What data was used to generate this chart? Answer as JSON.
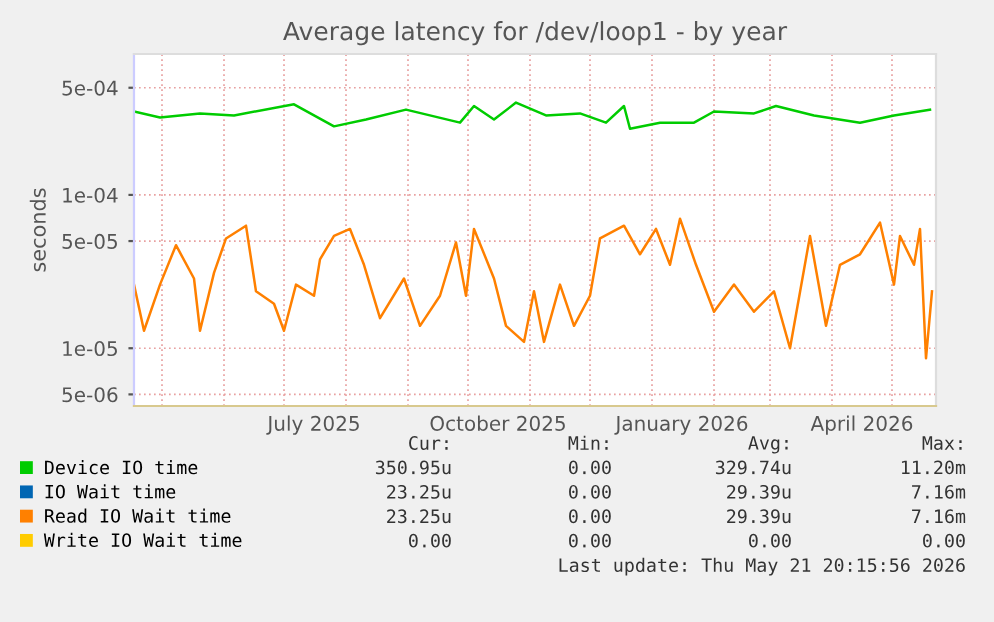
{
  "chart_data": {
    "type": "line",
    "title": "Average latency for /dev/loop1 - by year",
    "ylabel": "seconds",
    "log": "y",
    "ylim": [
      4.2e-06,
      0.00083
    ],
    "yticks": [
      {
        "value": 0.0005,
        "label": "5e-04"
      },
      {
        "value": 0.0001,
        "label": "1e-04"
      },
      {
        "value": 5e-05,
        "label": "5e-05"
      },
      {
        "value": 1e-05,
        "label": "1e-05"
      },
      {
        "value": 5e-06,
        "label": "5e-06"
      }
    ],
    "xlim": [
      "2025-04-17",
      "2026-05-23"
    ],
    "xticks": [
      {
        "value": "2025-05-01",
        "label": null
      },
      {
        "value": "2025-06-01",
        "label": null
      },
      {
        "value": "2025-07-01",
        "label": null
      },
      {
        "value": "2025-07-16",
        "label": "July 2025"
      },
      {
        "value": "2025-08-01",
        "label": null
      },
      {
        "value": "2025-09-01",
        "label": null
      },
      {
        "value": "2025-10-01",
        "label": null
      },
      {
        "value": "2025-10-16",
        "label": "October 2025"
      },
      {
        "value": "2025-11-01",
        "label": null
      },
      {
        "value": "2025-12-01",
        "label": null
      },
      {
        "value": "2026-01-01",
        "label": null
      },
      {
        "value": "2026-01-16",
        "label": "January 2026"
      },
      {
        "value": "2026-02-01",
        "label": null
      },
      {
        "value": "2026-03-01",
        "label": null
      },
      {
        "value": "2026-04-01",
        "label": null
      },
      {
        "value": "2026-04-16",
        "label": "April 2026"
      },
      {
        "value": "2026-05-01",
        "label": null
      }
    ],
    "grid": true,
    "legend": "bottom",
    "series": [
      {
        "name": "Device IO time",
        "color": "#00cc00",
        "x": [
          "2025-04-17",
          "2025-04-30",
          "2025-05-20",
          "2025-06-06",
          "2025-07-06",
          "2025-07-26",
          "2025-08-11",
          "2025-08-31",
          "2025-09-27",
          "2025-10-04",
          "2025-10-14",
          "2025-10-25",
          "2025-11-09",
          "2025-11-26",
          "2025-12-09",
          "2025-12-18",
          "2025-12-21",
          "2026-01-05",
          "2026-01-22",
          "2026-02-01",
          "2026-02-21",
          "2026-03-04",
          "2026-03-23",
          "2026-04-15",
          "2026-05-02",
          "2026-05-20"
        ],
        "values": [
          0.00035,
          0.00032,
          0.00034,
          0.00033,
          0.00039,
          0.00028,
          0.00031,
          0.00036,
          0.000296,
          0.00038,
          0.00031,
          0.0004,
          0.00033,
          0.00034,
          0.000296,
          0.00038,
          0.00027,
          0.000296,
          0.000296,
          0.00035,
          0.00034,
          0.00038,
          0.00033,
          0.000296,
          0.00033,
          0.00036
        ]
      },
      {
        "name": "IO Wait time",
        "color": "#0066b3"
      },
      {
        "name": "Read IO Wait time",
        "color": "#ff8000",
        "x": [
          "2025-04-17",
          "2025-04-22",
          "2025-04-30",
          "2025-05-08",
          "2025-05-17",
          "2025-05-20",
          "2025-05-27",
          "2025-06-02",
          "2025-06-12",
          "2025-06-17",
          "2025-06-26",
          "2025-07-01",
          "2025-07-07",
          "2025-07-16",
          "2025-07-19",
          "2025-07-26",
          "2025-08-03",
          "2025-08-10",
          "2025-08-18",
          "2025-08-30",
          "2025-09-07",
          "2025-09-17",
          "2025-09-25",
          "2025-09-30",
          "2025-10-04",
          "2025-10-14",
          "2025-10-20",
          "2025-10-29",
          "2025-11-03",
          "2025-11-08",
          "2025-11-16",
          "2025-11-23",
          "2025-12-01",
          "2025-12-06",
          "2025-12-18",
          "2025-12-26",
          "2026-01-03",
          "2026-01-10",
          "2026-01-15",
          "2026-01-23",
          "2026-02-01",
          "2026-02-11",
          "2026-02-21",
          "2026-03-03",
          "2026-03-11",
          "2026-03-21",
          "2026-03-29",
          "2026-04-05",
          "2026-04-15",
          "2026-04-25",
          "2026-05-02",
          "2026-05-05",
          "2026-05-12",
          "2026-05-15",
          "2026-05-18",
          "2026-05-21"
        ],
        "values": [
          2.6e-05,
          1.3e-05,
          2.6e-05,
          4.7e-05,
          2.85e-05,
          1.3e-05,
          3.1e-05,
          5.2e-05,
          6.3e-05,
          2.35e-05,
          1.95e-05,
          1.3e-05,
          2.6e-05,
          2.2e-05,
          3.8e-05,
          5.4e-05,
          6e-05,
          3.5e-05,
          1.57e-05,
          2.85e-05,
          1.4e-05,
          2.2e-05,
          4.9e-05,
          2.2e-05,
          6e-05,
          2.85e-05,
          1.4e-05,
          1.1e-05,
          2.35e-05,
          1.1e-05,
          2.6e-05,
          1.4e-05,
          2.2e-05,
          5.2e-05,
          6.3e-05,
          4.1e-05,
          6e-05,
          3.5e-05,
          7e-05,
          3.5e-05,
          1.73e-05,
          2.6e-05,
          1.73e-05,
          2.35e-05,
          1e-05,
          5.4e-05,
          1.4e-05,
          3.5e-05,
          4.1e-05,
          6.6e-05,
          2.6e-05,
          5.4e-05,
          3.5e-05,
          6e-05,
          8.6e-06,
          2.35e-05
        ]
      },
      {
        "name": "Write IO Wait time",
        "color": "#ffcc00"
      }
    ],
    "annotations": [
      "Cur:",
      "Min:",
      "Avg:",
      "Max:",
      "350.95u",
      "0.00",
      "329.74u",
      "11.20m",
      "23.25u",
      "0.00",
      "29.39u",
      "7.16m",
      "23.25u",
      "0.00",
      "29.39u",
      "7.16m",
      "0.00",
      "0.00",
      "0.00",
      "0.00",
      "Last update: Thu May 21 20:15:56 2026"
    ]
  }
}
